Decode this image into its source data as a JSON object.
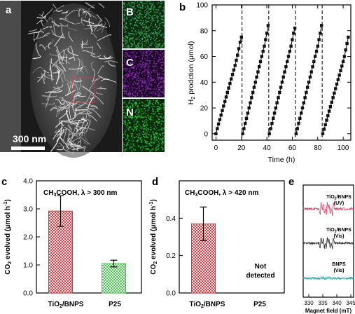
{
  "panels": {
    "a": "a",
    "b": "b",
    "c": "c",
    "d": "d",
    "e": "e"
  },
  "sem": {
    "scale_bar": "300 nm",
    "maps": [
      {
        "label": "B",
        "color": "#3fb55a"
      },
      {
        "label": "C",
        "color": "#9b2fc7"
      },
      {
        "label": "N",
        "color": "#2ed23a"
      }
    ]
  },
  "chart_data": [
    {
      "type": "scatter",
      "panel": "b",
      "xlabel": "Time (h)",
      "ylabel": "H2 prodction (μmol)",
      "xlim": [
        -3,
        106
      ],
      "ylim": [
        -5,
        100
      ],
      "xticks": [
        0,
        20,
        40,
        60,
        80,
        100
      ],
      "yticks": [
        0,
        20,
        40,
        60,
        80,
        100
      ],
      "dashed_x": [
        20.5,
        41.5,
        62.5,
        83.5
      ],
      "cycles": [
        {
          "x": [
            0,
            1,
            2,
            3,
            4,
            5,
            6,
            7,
            8,
            9,
            10,
            11,
            12,
            13,
            14,
            15,
            16,
            17,
            18,
            19,
            20
          ],
          "y": [
            0,
            4,
            7.5,
            11,
            14.5,
            18,
            21.5,
            25,
            28.5,
            32,
            35.5,
            39,
            42.5,
            46,
            49.5,
            53,
            57,
            61,
            66,
            71,
            75
          ]
        },
        {
          "x": [
            21,
            22,
            23,
            24,
            25,
            26,
            27,
            28,
            29,
            30,
            31,
            32,
            33,
            34,
            35,
            36,
            37,
            38,
            39,
            40,
            41
          ],
          "y": [
            0,
            4,
            8,
            12,
            16,
            20,
            24,
            28,
            32,
            36,
            40,
            44,
            48,
            52,
            56,
            60,
            64,
            68,
            73,
            78,
            84
          ]
        },
        {
          "x": [
            42,
            43,
            44,
            45,
            46,
            47,
            48,
            49,
            50,
            51,
            52,
            53,
            54,
            55,
            56,
            57,
            58,
            59,
            60,
            61,
            62
          ],
          "y": [
            0,
            4,
            8,
            12,
            16,
            20,
            24,
            28,
            32,
            36,
            40,
            44,
            48,
            52,
            56,
            60,
            64,
            68,
            73,
            78,
            82
          ]
        },
        {
          "x": [
            63,
            64,
            65,
            66,
            67,
            68,
            69,
            70,
            71,
            72,
            73,
            74,
            75,
            76,
            77,
            78,
            79,
            80,
            81,
            82,
            83
          ],
          "y": [
            0,
            4,
            8,
            12,
            16,
            20,
            24,
            28,
            32,
            36,
            40,
            44,
            48,
            52,
            56,
            60,
            64,
            68,
            73,
            78,
            84
          ]
        },
        {
          "x": [
            84,
            85,
            86,
            87,
            88,
            89,
            90,
            91,
            92,
            93,
            94,
            95,
            96,
            97,
            98,
            99,
            100,
            101,
            102,
            103,
            104
          ],
          "y": [
            0,
            3.5,
            7,
            10.5,
            14,
            17.5,
            21,
            24.5,
            28,
            31.5,
            35,
            38.5,
            42,
            45.5,
            49,
            52.5,
            56,
            60,
            65,
            70,
            75
          ]
        }
      ]
    },
    {
      "type": "bar",
      "panel": "c",
      "title": "CH3COOH, λ > 300 nm",
      "ylabel": "CO2 evolved (μmol h−1)",
      "ylim": [
        0,
        4.0
      ],
      "yticks": [
        "0.0",
        "1.0",
        "2.0",
        "3.0",
        "4.0"
      ],
      "categories": [
        "TiO2/BNPS",
        "P25"
      ],
      "values": [
        2.92,
        1.05
      ],
      "errors": [
        0.55,
        0.12
      ],
      "colors": [
        "#e8343a",
        "#46c84b"
      ]
    },
    {
      "type": "bar",
      "panel": "d",
      "title": "CH3COOH, λ > 420 nm",
      "ylabel": "CO2 evolved (μmol h−1)",
      "ylim": [
        0,
        0.6
      ],
      "yticks": [
        "0.0",
        "0.2",
        "0.4"
      ],
      "categories": [
        "TiO2/BNPS",
        "P25"
      ],
      "values": [
        0.37,
        null
      ],
      "errors": [
        0.09,
        null
      ],
      "colors": [
        "#e8343a",
        "#46c84b"
      ],
      "annotation": [
        "Not",
        "detected"
      ]
    },
    {
      "type": "line",
      "panel": "e",
      "xlabel": "Magnet field (mT)",
      "xticks": [
        330,
        335,
        340,
        345
      ],
      "xlim": [
        328,
        346
      ],
      "series": [
        {
          "label": [
            "TiO2/BNPS",
            "(UV)"
          ],
          "color": "#e0456e"
        },
        {
          "label": [
            "TiO2/BNPS",
            "(Vis)"
          ],
          "color": "#2a2a2a"
        },
        {
          "label": [
            "BNPS",
            "(Vis)"
          ],
          "color": "#3aa8a8"
        }
      ]
    }
  ]
}
